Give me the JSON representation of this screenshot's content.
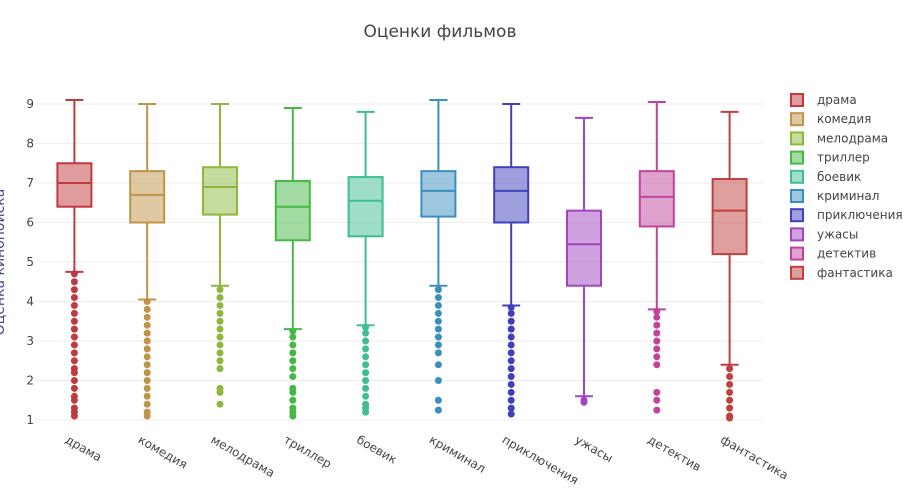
{
  "chart_data": {
    "type": "box",
    "title": "Оценки фильмов",
    "ylabel": "Оценка кинопоиска",
    "ylim": [
      0.85,
      9.3
    ],
    "yticks": [
      1,
      2,
      3,
      4,
      5,
      6,
      7,
      8,
      9
    ],
    "grid": true,
    "legend": "right",
    "series": [
      {
        "name": "драма",
        "color": "#c0393f",
        "max": 9.1,
        "q3": 7.5,
        "median": 7.0,
        "q1": 6.4,
        "lowerfence": 4.75,
        "outliers": [
          4.7,
          4.5,
          4.3,
          4.1,
          3.9,
          3.7,
          3.5,
          3.3,
          3.1,
          2.9,
          2.7,
          2.5,
          2.3,
          2.2,
          2.0,
          1.8,
          1.6,
          1.5,
          1.3,
          1.2,
          1.1
        ]
      },
      {
        "name": "комедия",
        "color": "#c09347",
        "max": 9.0,
        "q3": 7.3,
        "median": 6.7,
        "q1": 6.0,
        "lowerfence": 4.05,
        "outliers": [
          4.0,
          3.8,
          3.6,
          3.4,
          3.2,
          3.0,
          2.8,
          2.6,
          2.4,
          2.2,
          2.0,
          1.8,
          1.6,
          1.4,
          1.2,
          1.1
        ]
      },
      {
        "name": "мелодрама",
        "color": "#8db83d",
        "max": 9.0,
        "q3": 7.4,
        "median": 6.9,
        "q1": 6.2,
        "lowerfence": 4.4,
        "outliers": [
          4.3,
          4.1,
          3.9,
          3.7,
          3.5,
          3.3,
          3.1,
          2.9,
          2.7,
          2.5,
          2.3,
          1.8,
          1.7,
          1.4
        ]
      },
      {
        "name": "триллер",
        "color": "#45b845",
        "max": 8.9,
        "q3": 7.05,
        "median": 6.4,
        "q1": 5.55,
        "lowerfence": 3.3,
        "outliers": [
          3.25,
          3.1,
          2.9,
          2.7,
          2.5,
          2.3,
          2.1,
          1.8,
          1.7,
          1.5,
          1.3,
          1.2,
          1.1
        ]
      },
      {
        "name": "боевик",
        "color": "#40bd94",
        "max": 8.8,
        "q3": 7.15,
        "median": 6.55,
        "q1": 5.65,
        "lowerfence": 3.4,
        "outliers": [
          3.35,
          3.2,
          3.0,
          2.8,
          2.6,
          2.4,
          2.2,
          2.0,
          1.8,
          1.6,
          1.4,
          1.3,
          1.2
        ]
      },
      {
        "name": "криминал",
        "color": "#3b8fc0",
        "max": 9.1,
        "q3": 7.3,
        "median": 6.8,
        "q1": 6.15,
        "lowerfence": 4.4,
        "outliers": [
          4.3,
          4.1,
          3.9,
          3.7,
          3.5,
          3.3,
          3.1,
          2.9,
          2.7,
          2.4,
          2.0,
          1.5,
          1.25
        ]
      },
      {
        "name": "приключения",
        "color": "#4040bd",
        "max": 9.0,
        "q3": 7.4,
        "median": 6.8,
        "q1": 6.0,
        "lowerfence": 3.9,
        "outliers": [
          3.85,
          3.7,
          3.5,
          3.3,
          3.1,
          2.9,
          2.7,
          2.5,
          2.3,
          2.1,
          1.9,
          1.7,
          1.5,
          1.3,
          1.15
        ]
      },
      {
        "name": "ужасы",
        "color": "#a244c0",
        "max": 8.65,
        "q3": 6.3,
        "median": 5.45,
        "q1": 4.4,
        "lowerfence": 1.6,
        "outliers": [
          1.5,
          1.45
        ]
      },
      {
        "name": "детектив",
        "color": "#c0449b",
        "max": 9.05,
        "q3": 7.3,
        "median": 6.65,
        "q1": 5.9,
        "lowerfence": 3.8,
        "outliers": [
          3.75,
          3.6,
          3.4,
          3.2,
          3.0,
          2.8,
          2.6,
          2.4,
          1.7,
          1.5,
          1.25
        ]
      },
      {
        "name": "фантастика",
        "color": "#c0403f",
        "max": 8.8,
        "q3": 7.1,
        "median": 6.3,
        "q1": 5.2,
        "lowerfence": 2.4,
        "outliers": [
          2.3,
          2.1,
          1.9,
          1.7,
          1.5,
          1.3,
          1.1,
          1.05
        ]
      }
    ]
  }
}
